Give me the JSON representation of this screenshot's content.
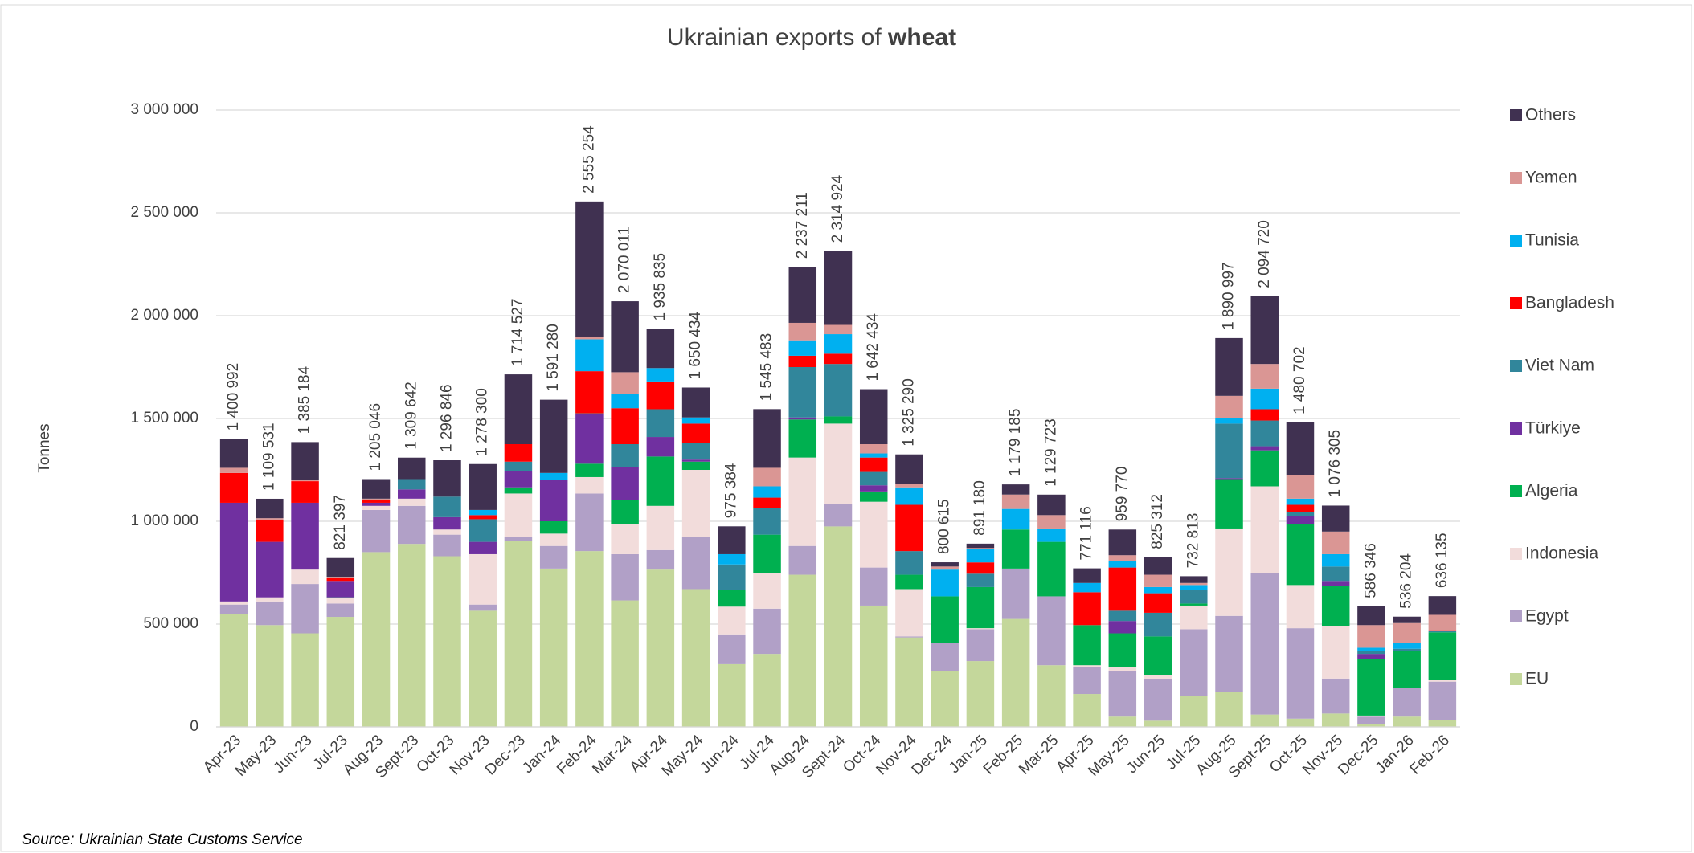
{
  "chart_data": {
    "type": "stacked_bar",
    "title": "Ukrainian exports of",
    "title_bold": "wheat",
    "y_axis_label": "Tonnes",
    "source": "Source: Ukrainian State Customs Service",
    "categories": [
      "Apr-23",
      "May-23",
      "Jun-23",
      "Jul-23",
      "Aug-23",
      "Sept-23",
      "Oct-23",
      "Nov-23",
      "Dec-23",
      "Jan-24",
      "Feb-24",
      "Mar-24",
      "Apr-24",
      "May-24",
      "Jun-24",
      "Jul-24",
      "Aug-24",
      "Sept-24",
      "Oct-24",
      "Nov-24",
      "Dec-24",
      "Jan-25",
      "Feb-25",
      "Mar-25",
      "Apr-25",
      "May-25",
      "Jun-25",
      "Jul-25",
      "Aug-25",
      "Sept-25",
      "Oct-25",
      "Nov-25",
      "Dec-25",
      "Jan-26",
      "Feb-26"
    ],
    "series": [
      {
        "name": "EU",
        "color": "#c4d79b",
        "values": [
          550000,
          495000,
          455000,
          535000,
          850000,
          890000,
          830000,
          565000,
          905000,
          770000,
          855000,
          615000,
          765000,
          670000,
          305000,
          355000,
          740000,
          975000,
          590000,
          435000,
          270000,
          320000,
          525000,
          300000,
          160000,
          50000,
          30000,
          150000,
          170000,
          60000,
          40000,
          65000,
          15000,
          50000,
          35000
        ]
      },
      {
        "name": "Egypt",
        "color": "#b1a0c7",
        "values": [
          45000,
          115000,
          240000,
          65000,
          205000,
          185000,
          105000,
          30000,
          20000,
          110000,
          280000,
          225000,
          95000,
          255000,
          145000,
          220000,
          140000,
          110000,
          185000,
          5000,
          140000,
          155000,
          245000,
          335000,
          130000,
          220000,
          205000,
          325000,
          370000,
          690000,
          440000,
          170000,
          35000,
          140000,
          185000
        ]
      },
      {
        "name": "Indonesia",
        "color": "#f2dcdb",
        "values": [
          15000,
          20000,
          70000,
          25000,
          20000,
          35000,
          25000,
          245000,
          210000,
          60000,
          80000,
          145000,
          215000,
          325000,
          135000,
          175000,
          430000,
          390000,
          320000,
          230000,
          0,
          5000,
          0,
          0,
          10000,
          20000,
          15000,
          115000,
          425000,
          420000,
          210000,
          255000,
          5000,
          0,
          10000
        ]
      },
      {
        "name": "Algeria",
        "color": "#00b050",
        "values": [
          0,
          0,
          0,
          5000,
          0,
          0,
          0,
          0,
          30000,
          60000,
          65000,
          120000,
          240000,
          40000,
          80000,
          185000,
          185000,
          35000,
          50000,
          70000,
          225000,
          200000,
          190000,
          265000,
          195000,
          165000,
          190000,
          10000,
          240000,
          175000,
          295000,
          195000,
          275000,
          180000,
          230000
        ]
      },
      {
        "name": "Türkiye",
        "color": "#7030a0",
        "values": [
          480000,
          270000,
          325000,
          80000,
          15000,
          45000,
          60000,
          60000,
          80000,
          200000,
          240000,
          160000,
          95000,
          10000,
          0,
          0,
          10000,
          0,
          30000,
          0,
          0,
          0,
          0,
          0,
          0,
          60000,
          0,
          0,
          5000,
          20000,
          40000,
          25000,
          25000,
          0,
          0
        ]
      },
      {
        "name": "Viet Nam",
        "color": "#31869b",
        "values": [
          0,
          0,
          0,
          0,
          0,
          50000,
          100000,
          110000,
          45000,
          0,
          5000,
          110000,
          135000,
          80000,
          125000,
          130000,
          245000,
          255000,
          65000,
          115000,
          0,
          65000,
          0,
          0,
          0,
          50000,
          115000,
          65000,
          265000,
          125000,
          20000,
          70000,
          15000,
          10000,
          5000
        ]
      },
      {
        "name": "Bangladesh",
        "color": "#ff0000",
        "values": [
          145000,
          105000,
          105000,
          15000,
          15000,
          0,
          0,
          20000,
          85000,
          0,
          205000,
          175000,
          135000,
          95000,
          0,
          50000,
          55000,
          50000,
          70000,
          225000,
          0,
          55000,
          0,
          0,
          160000,
          210000,
          95000,
          0,
          0,
          55000,
          35000,
          0,
          0,
          0,
          5000
        ]
      },
      {
        "name": "Tunisia",
        "color": "#00b0f0",
        "values": [
          0,
          0,
          0,
          0,
          0,
          0,
          0,
          25000,
          0,
          35000,
          155000,
          70000,
          65000,
          30000,
          50000,
          55000,
          75000,
          95000,
          20000,
          85000,
          130000,
          65000,
          100000,
          65000,
          45000,
          30000,
          30000,
          25000,
          25000,
          100000,
          30000,
          60000,
          15000,
          30000,
          0
        ]
      },
      {
        "name": "Yemen",
        "color": "#da9694",
        "values": [
          25000,
          10000,
          5000,
          5000,
          5000,
          0,
          0,
          0,
          0,
          0,
          10000,
          105000,
          0,
          0,
          0,
          90000,
          85000,
          45000,
          45000,
          15000,
          15000,
          5000,
          70000,
          65000,
          0,
          30000,
          60000,
          10000,
          110000,
          120000,
          115000,
          110000,
          110000,
          95000,
          75000
        ]
      },
      {
        "name": "Others",
        "color": "#403151",
        "values": [
          140992,
          94531,
          185184,
          91397,
          95046,
          104642,
          176846,
          223300,
          339527,
          356280,
          660254,
          345011,
          190835,
          145434,
          135384,
          285483,
          272211,
          359924,
          267434,
          145290,
          20615,
          21180,
          49185,
          99723,
          71116,
          124770,
          85312,
          32813,
          280997,
          329720,
          255702,
          126305,
          91346,
          31204,
          91135
        ]
      }
    ],
    "totals": [
      1400992,
      1109531,
      1385184,
      821397,
      1205046,
      1309642,
      1296846,
      1278300,
      1714527,
      1591280,
      2555254,
      2070011,
      1935835,
      1650434,
      975384,
      1545483,
      2237211,
      2314924,
      1642434,
      1325290,
      800615,
      891180,
      1179185,
      1129723,
      771116,
      959770,
      825312,
      732813,
      1890997,
      2094720,
      1480702,
      1076305,
      586346,
      536204,
      636135
    ],
    "total_labels": [
      "1 400 992",
      "1 109 531",
      "1 385 184",
      "821 397",
      "1 205 046",
      "1 309 642",
      "1 296 846",
      "1 278 300",
      "1 714 527",
      "1 591 280",
      "2 555 254",
      "2 070 011",
      "1 935 835",
      "1 650 434",
      "975 384",
      "1 545 483",
      "2 237 211",
      "2 314 924",
      "1 642 434",
      "1 325 290",
      "800 615",
      "891 180",
      "1 179 185",
      "1 129 723",
      "771 116",
      "959 770",
      "825 312",
      "732 813",
      "1 890 997",
      "2 094 720",
      "1 480 702",
      "1 076 305",
      "586 346",
      "536 204",
      "636 135"
    ],
    "ylim": [
      0,
      3000000
    ],
    "yticks": [
      0,
      {
        "value": 500000,
        "label": "500 000"
      },
      {
        "value": 1000000,
        "label": "1 000 000"
      },
      {
        "value": 1500000,
        "label": "1 500 000"
      },
      {
        "value": 2000000,
        "label": "2 000 000"
      },
      {
        "value": 2500000,
        "label": "2 500 000"
      },
      {
        "value": 3000000,
        "label": "3 000 000"
      }
    ],
    "grid": true,
    "legend": "right"
  }
}
